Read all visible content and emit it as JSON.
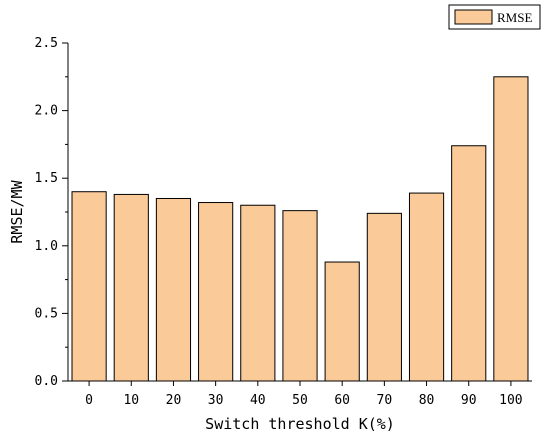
{
  "chart_data": {
    "type": "bar",
    "categories": [
      "0",
      "10",
      "20",
      "30",
      "40",
      "50",
      "60",
      "70",
      "80",
      "90",
      "100"
    ],
    "series": [
      {
        "name": "RMSE",
        "values": [
          1.4,
          1.38,
          1.35,
          1.32,
          1.3,
          1.26,
          0.88,
          1.24,
          1.39,
          1.74,
          2.25
        ]
      }
    ],
    "xlabel": "Switch threshold K(%)",
    "ylabel": "RMSE/MW",
    "ylim": [
      0,
      2.5
    ],
    "yticks": [
      "0.0",
      "0.5",
      "1.0",
      "1.5",
      "2.0",
      "2.5"
    ],
    "grid": false,
    "legend_position": "top-right",
    "colors": {
      "bar_fill": "#FACB99",
      "bar_stroke": "#000000",
      "axis": "#000000"
    }
  }
}
